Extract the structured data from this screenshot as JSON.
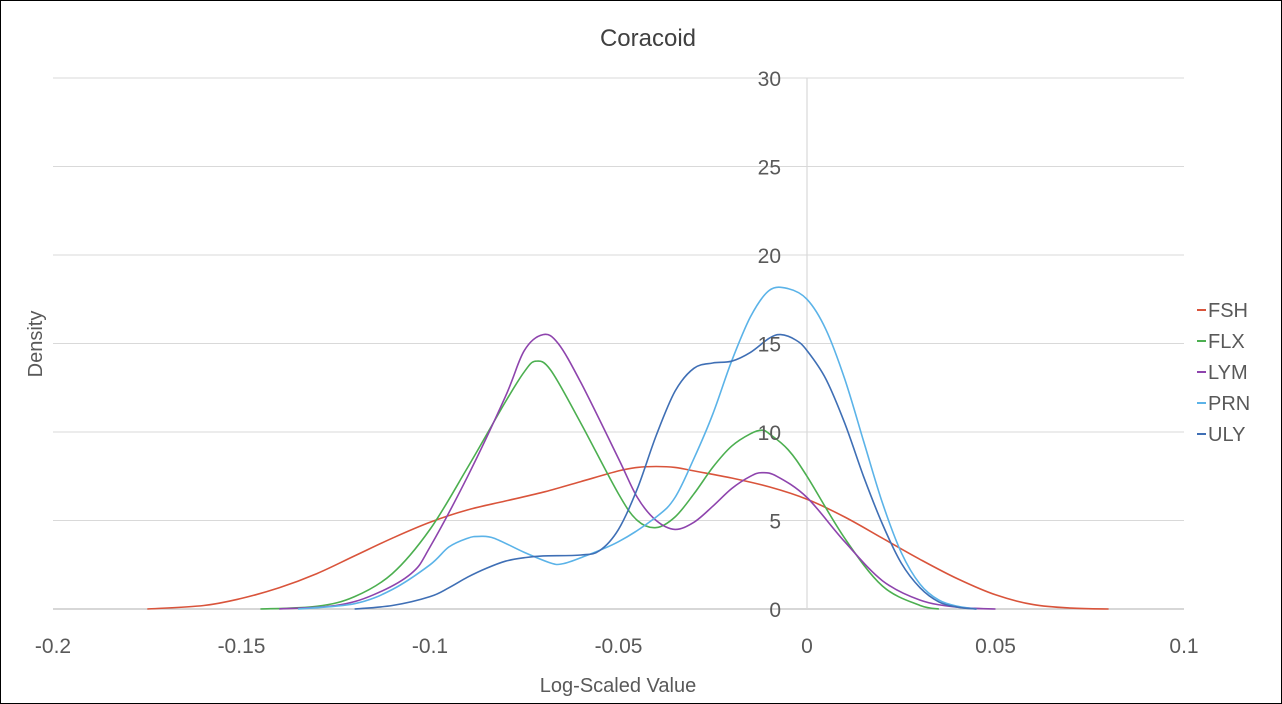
{
  "chart_data": {
    "type": "line",
    "title": "Coracoid",
    "xlabel": "Log-Scaled Value",
    "ylabel": "Density",
    "xlim": [
      -0.2,
      0.1
    ],
    "ylim": [
      0,
      30
    ],
    "x_ticks": [
      -0.2,
      -0.15,
      -0.1,
      -0.05,
      0,
      0.05,
      0.1
    ],
    "x_tick_labels": [
      "-0.2",
      "-0.15",
      "-0.1",
      "-0.05",
      "0",
      "0.05",
      "0.1"
    ],
    "y_ticks": [
      0,
      5,
      10,
      15,
      20,
      25,
      30
    ],
    "y_tick_labels": [
      "0",
      "5",
      "10",
      "15",
      "20",
      "25",
      "30"
    ],
    "grid": "horizontal",
    "legend_position": "right",
    "series": [
      {
        "name": "FSH",
        "color": "#d9543b",
        "points": [
          [
            -0.175,
            0
          ],
          [
            -0.16,
            0.2
          ],
          [
            -0.15,
            0.6
          ],
          [
            -0.14,
            1.2
          ],
          [
            -0.13,
            2.0
          ],
          [
            -0.12,
            3.0
          ],
          [
            -0.11,
            4.0
          ],
          [
            -0.1,
            4.9
          ],
          [
            -0.09,
            5.6
          ],
          [
            -0.08,
            6.1
          ],
          [
            -0.07,
            6.6
          ],
          [
            -0.06,
            7.2
          ],
          [
            -0.05,
            7.8
          ],
          [
            -0.045,
            8.0
          ],
          [
            -0.04,
            8.05
          ],
          [
            -0.035,
            8.0
          ],
          [
            -0.03,
            7.8
          ],
          [
            -0.02,
            7.4
          ],
          [
            -0.01,
            6.9
          ],
          [
            0,
            6.2
          ],
          [
            0.01,
            5.2
          ],
          [
            0.02,
            4.0
          ],
          [
            0.03,
            2.8
          ],
          [
            0.04,
            1.7
          ],
          [
            0.05,
            0.8
          ],
          [
            0.06,
            0.25
          ],
          [
            0.07,
            0.05
          ],
          [
            0.08,
            0
          ]
        ]
      },
      {
        "name": "FLX",
        "color": "#4caf50",
        "points": [
          [
            -0.145,
            0
          ],
          [
            -0.13,
            0.15
          ],
          [
            -0.12,
            0.7
          ],
          [
            -0.11,
            2.0
          ],
          [
            -0.1,
            4.5
          ],
          [
            -0.09,
            8.0
          ],
          [
            -0.08,
            11.7
          ],
          [
            -0.075,
            13.4
          ],
          [
            -0.072,
            14.0
          ],
          [
            -0.068,
            13.5
          ],
          [
            -0.06,
            10.5
          ],
          [
            -0.05,
            6.5
          ],
          [
            -0.045,
            5.0
          ],
          [
            -0.04,
            4.6
          ],
          [
            -0.035,
            5.2
          ],
          [
            -0.03,
            6.5
          ],
          [
            -0.025,
            8.0
          ],
          [
            -0.02,
            9.2
          ],
          [
            -0.015,
            9.9
          ],
          [
            -0.012,
            10.1
          ],
          [
            -0.01,
            9.9
          ],
          [
            -0.005,
            9.0
          ],
          [
            0,
            7.5
          ],
          [
            0.01,
            4.0
          ],
          [
            0.02,
            1.3
          ],
          [
            0.03,
            0.2
          ],
          [
            0.035,
            0
          ]
        ]
      },
      {
        "name": "LYM",
        "color": "#8e44ad",
        "points": [
          [
            -0.14,
            0
          ],
          [
            -0.125,
            0.2
          ],
          [
            -0.115,
            0.8
          ],
          [
            -0.105,
            2.0
          ],
          [
            -0.1,
            3.5
          ],
          [
            -0.09,
            7.5
          ],
          [
            -0.08,
            12.0
          ],
          [
            -0.075,
            14.6
          ],
          [
            -0.07,
            15.5
          ],
          [
            -0.066,
            15.0
          ],
          [
            -0.06,
            12.8
          ],
          [
            -0.05,
            8.5
          ],
          [
            -0.045,
            6.3
          ],
          [
            -0.04,
            5.0
          ],
          [
            -0.035,
            4.5
          ],
          [
            -0.03,
            4.9
          ],
          [
            -0.025,
            5.8
          ],
          [
            -0.02,
            6.8
          ],
          [
            -0.015,
            7.5
          ],
          [
            -0.012,
            7.7
          ],
          [
            -0.008,
            7.5
          ],
          [
            0,
            6.3
          ],
          [
            0.01,
            3.8
          ],
          [
            0.02,
            1.6
          ],
          [
            0.03,
            0.5
          ],
          [
            0.04,
            0.1
          ],
          [
            0.05,
            0
          ]
        ]
      },
      {
        "name": "PRN",
        "color": "#5bb3e8",
        "points": [
          [
            -0.135,
            0
          ],
          [
            -0.12,
            0.3
          ],
          [
            -0.11,
            1.1
          ],
          [
            -0.1,
            2.5
          ],
          [
            -0.095,
            3.5
          ],
          [
            -0.09,
            4.0
          ],
          [
            -0.087,
            4.1
          ],
          [
            -0.083,
            4.0
          ],
          [
            -0.075,
            3.2
          ],
          [
            -0.068,
            2.6
          ],
          [
            -0.065,
            2.55
          ],
          [
            -0.06,
            2.9
          ],
          [
            -0.05,
            3.8
          ],
          [
            -0.04,
            5.2
          ],
          [
            -0.035,
            6.3
          ],
          [
            -0.03,
            8.5
          ],
          [
            -0.025,
            11.0
          ],
          [
            -0.02,
            14.0
          ],
          [
            -0.015,
            16.5
          ],
          [
            -0.01,
            18.0
          ],
          [
            -0.005,
            18.1
          ],
          [
            0,
            17.5
          ],
          [
            0.005,
            15.8
          ],
          [
            0.01,
            13.0
          ],
          [
            0.015,
            9.5
          ],
          [
            0.02,
            6.0
          ],
          [
            0.025,
            3.2
          ],
          [
            0.03,
            1.4
          ],
          [
            0.035,
            0.5
          ],
          [
            0.04,
            0.15
          ],
          [
            0.045,
            0
          ]
        ]
      },
      {
        "name": "ULY",
        "color": "#3f6fb5",
        "points": [
          [
            -0.12,
            0
          ],
          [
            -0.11,
            0.2
          ],
          [
            -0.1,
            0.7
          ],
          [
            -0.095,
            1.2
          ],
          [
            -0.09,
            1.8
          ],
          [
            -0.085,
            2.3
          ],
          [
            -0.08,
            2.7
          ],
          [
            -0.075,
            2.9
          ],
          [
            -0.07,
            3.0
          ],
          [
            -0.06,
            3.05
          ],
          [
            -0.055,
            3.3
          ],
          [
            -0.05,
            4.5
          ],
          [
            -0.045,
            6.8
          ],
          [
            -0.04,
            9.8
          ],
          [
            -0.035,
            12.3
          ],
          [
            -0.03,
            13.6
          ],
          [
            -0.025,
            13.9
          ],
          [
            -0.02,
            14.0
          ],
          [
            -0.015,
            14.5
          ],
          [
            -0.01,
            15.3
          ],
          [
            -0.007,
            15.5
          ],
          [
            -0.003,
            15.2
          ],
          [
            0,
            14.6
          ],
          [
            0.005,
            13.0
          ],
          [
            0.01,
            10.5
          ],
          [
            0.015,
            7.5
          ],
          [
            0.02,
            4.8
          ],
          [
            0.025,
            2.6
          ],
          [
            0.03,
            1.2
          ],
          [
            0.035,
            0.4
          ],
          [
            0.04,
            0.1
          ],
          [
            0.045,
            0
          ]
        ]
      }
    ]
  }
}
